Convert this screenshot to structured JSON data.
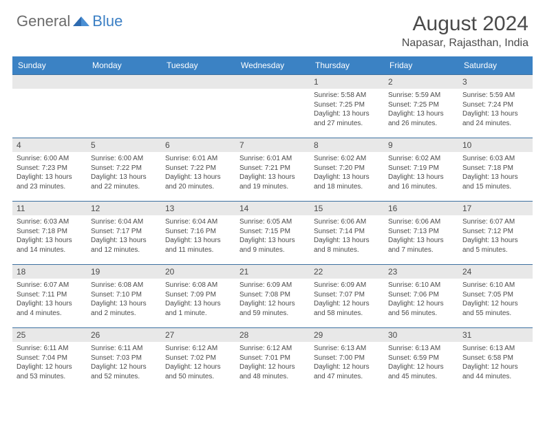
{
  "logo": {
    "general": "General",
    "blue": "Blue"
  },
  "title": "August 2024",
  "location": "Napasar, Rajasthan, India",
  "colors": {
    "header_bg": "#3b82c4",
    "daynum_bg": "#e8e8e8",
    "border": "#3b6fa0",
    "text": "#4a4a4a",
    "logo_gray": "#6b6b6b",
    "logo_blue": "#3b7fc4"
  },
  "dayNames": [
    "Sunday",
    "Monday",
    "Tuesday",
    "Wednesday",
    "Thursday",
    "Friday",
    "Saturday"
  ],
  "weeks": [
    [
      null,
      null,
      null,
      null,
      {
        "n": "1",
        "sr": "Sunrise: 5:58 AM",
        "ss": "Sunset: 7:25 PM",
        "d1": "Daylight: 13 hours",
        "d2": "and 27 minutes."
      },
      {
        "n": "2",
        "sr": "Sunrise: 5:59 AM",
        "ss": "Sunset: 7:25 PM",
        "d1": "Daylight: 13 hours",
        "d2": "and 26 minutes."
      },
      {
        "n": "3",
        "sr": "Sunrise: 5:59 AM",
        "ss": "Sunset: 7:24 PM",
        "d1": "Daylight: 13 hours",
        "d2": "and 24 minutes."
      }
    ],
    [
      {
        "n": "4",
        "sr": "Sunrise: 6:00 AM",
        "ss": "Sunset: 7:23 PM",
        "d1": "Daylight: 13 hours",
        "d2": "and 23 minutes."
      },
      {
        "n": "5",
        "sr": "Sunrise: 6:00 AM",
        "ss": "Sunset: 7:22 PM",
        "d1": "Daylight: 13 hours",
        "d2": "and 22 minutes."
      },
      {
        "n": "6",
        "sr": "Sunrise: 6:01 AM",
        "ss": "Sunset: 7:22 PM",
        "d1": "Daylight: 13 hours",
        "d2": "and 20 minutes."
      },
      {
        "n": "7",
        "sr": "Sunrise: 6:01 AM",
        "ss": "Sunset: 7:21 PM",
        "d1": "Daylight: 13 hours",
        "d2": "and 19 minutes."
      },
      {
        "n": "8",
        "sr": "Sunrise: 6:02 AM",
        "ss": "Sunset: 7:20 PM",
        "d1": "Daylight: 13 hours",
        "d2": "and 18 minutes."
      },
      {
        "n": "9",
        "sr": "Sunrise: 6:02 AM",
        "ss": "Sunset: 7:19 PM",
        "d1": "Daylight: 13 hours",
        "d2": "and 16 minutes."
      },
      {
        "n": "10",
        "sr": "Sunrise: 6:03 AM",
        "ss": "Sunset: 7:18 PM",
        "d1": "Daylight: 13 hours",
        "d2": "and 15 minutes."
      }
    ],
    [
      {
        "n": "11",
        "sr": "Sunrise: 6:03 AM",
        "ss": "Sunset: 7:18 PM",
        "d1": "Daylight: 13 hours",
        "d2": "and 14 minutes."
      },
      {
        "n": "12",
        "sr": "Sunrise: 6:04 AM",
        "ss": "Sunset: 7:17 PM",
        "d1": "Daylight: 13 hours",
        "d2": "and 12 minutes."
      },
      {
        "n": "13",
        "sr": "Sunrise: 6:04 AM",
        "ss": "Sunset: 7:16 PM",
        "d1": "Daylight: 13 hours",
        "d2": "and 11 minutes."
      },
      {
        "n": "14",
        "sr": "Sunrise: 6:05 AM",
        "ss": "Sunset: 7:15 PM",
        "d1": "Daylight: 13 hours",
        "d2": "and 9 minutes."
      },
      {
        "n": "15",
        "sr": "Sunrise: 6:06 AM",
        "ss": "Sunset: 7:14 PM",
        "d1": "Daylight: 13 hours",
        "d2": "and 8 minutes."
      },
      {
        "n": "16",
        "sr": "Sunrise: 6:06 AM",
        "ss": "Sunset: 7:13 PM",
        "d1": "Daylight: 13 hours",
        "d2": "and 7 minutes."
      },
      {
        "n": "17",
        "sr": "Sunrise: 6:07 AM",
        "ss": "Sunset: 7:12 PM",
        "d1": "Daylight: 13 hours",
        "d2": "and 5 minutes."
      }
    ],
    [
      {
        "n": "18",
        "sr": "Sunrise: 6:07 AM",
        "ss": "Sunset: 7:11 PM",
        "d1": "Daylight: 13 hours",
        "d2": "and 4 minutes."
      },
      {
        "n": "19",
        "sr": "Sunrise: 6:08 AM",
        "ss": "Sunset: 7:10 PM",
        "d1": "Daylight: 13 hours",
        "d2": "and 2 minutes."
      },
      {
        "n": "20",
        "sr": "Sunrise: 6:08 AM",
        "ss": "Sunset: 7:09 PM",
        "d1": "Daylight: 13 hours",
        "d2": "and 1 minute."
      },
      {
        "n": "21",
        "sr": "Sunrise: 6:09 AM",
        "ss": "Sunset: 7:08 PM",
        "d1": "Daylight: 12 hours",
        "d2": "and 59 minutes."
      },
      {
        "n": "22",
        "sr": "Sunrise: 6:09 AM",
        "ss": "Sunset: 7:07 PM",
        "d1": "Daylight: 12 hours",
        "d2": "and 58 minutes."
      },
      {
        "n": "23",
        "sr": "Sunrise: 6:10 AM",
        "ss": "Sunset: 7:06 PM",
        "d1": "Daylight: 12 hours",
        "d2": "and 56 minutes."
      },
      {
        "n": "24",
        "sr": "Sunrise: 6:10 AM",
        "ss": "Sunset: 7:05 PM",
        "d1": "Daylight: 12 hours",
        "d2": "and 55 minutes."
      }
    ],
    [
      {
        "n": "25",
        "sr": "Sunrise: 6:11 AM",
        "ss": "Sunset: 7:04 PM",
        "d1": "Daylight: 12 hours",
        "d2": "and 53 minutes."
      },
      {
        "n": "26",
        "sr": "Sunrise: 6:11 AM",
        "ss": "Sunset: 7:03 PM",
        "d1": "Daylight: 12 hours",
        "d2": "and 52 minutes."
      },
      {
        "n": "27",
        "sr": "Sunrise: 6:12 AM",
        "ss": "Sunset: 7:02 PM",
        "d1": "Daylight: 12 hours",
        "d2": "and 50 minutes."
      },
      {
        "n": "28",
        "sr": "Sunrise: 6:12 AM",
        "ss": "Sunset: 7:01 PM",
        "d1": "Daylight: 12 hours",
        "d2": "and 48 minutes."
      },
      {
        "n": "29",
        "sr": "Sunrise: 6:13 AM",
        "ss": "Sunset: 7:00 PM",
        "d1": "Daylight: 12 hours",
        "d2": "and 47 minutes."
      },
      {
        "n": "30",
        "sr": "Sunrise: 6:13 AM",
        "ss": "Sunset: 6:59 PM",
        "d1": "Daylight: 12 hours",
        "d2": "and 45 minutes."
      },
      {
        "n": "31",
        "sr": "Sunrise: 6:13 AM",
        "ss": "Sunset: 6:58 PM",
        "d1": "Daylight: 12 hours",
        "d2": "and 44 minutes."
      }
    ]
  ]
}
